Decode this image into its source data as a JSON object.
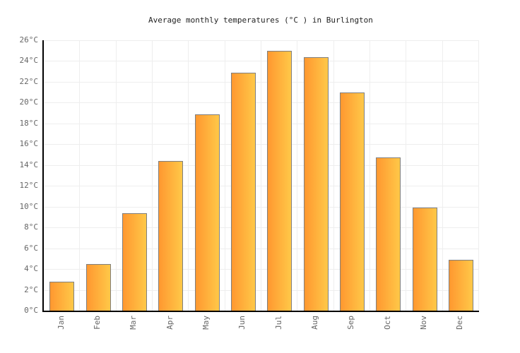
{
  "chart_data": {
    "type": "bar",
    "title": "Average monthly temperatures (°C ) in Burlington",
    "categories": [
      "Jan",
      "Feb",
      "Mar",
      "Apr",
      "May",
      "Jun",
      "Jul",
      "Aug",
      "Sep",
      "Oct",
      "Nov",
      "Dec"
    ],
    "values": [
      2.8,
      4.5,
      9.4,
      14.4,
      18.9,
      22.9,
      25,
      24.4,
      21,
      14.7,
      9.9,
      4.9
    ],
    "xlabel": "",
    "ylabel": "",
    "ylim": [
      0,
      26
    ],
    "ytick_step": 2,
    "ytick_suffix": "°C",
    "grid": true,
    "legend": false
  },
  "colors": {
    "bar_gradient_left": "#FF9830",
    "bar_gradient_right": "#FFC848",
    "bar_border": "#7F7F7F",
    "axis_line": "#000000",
    "grid_line": "#EEEEEE",
    "tick_label_text": "#666666",
    "title_text": "#222222",
    "background": "#FFFFFF"
  }
}
